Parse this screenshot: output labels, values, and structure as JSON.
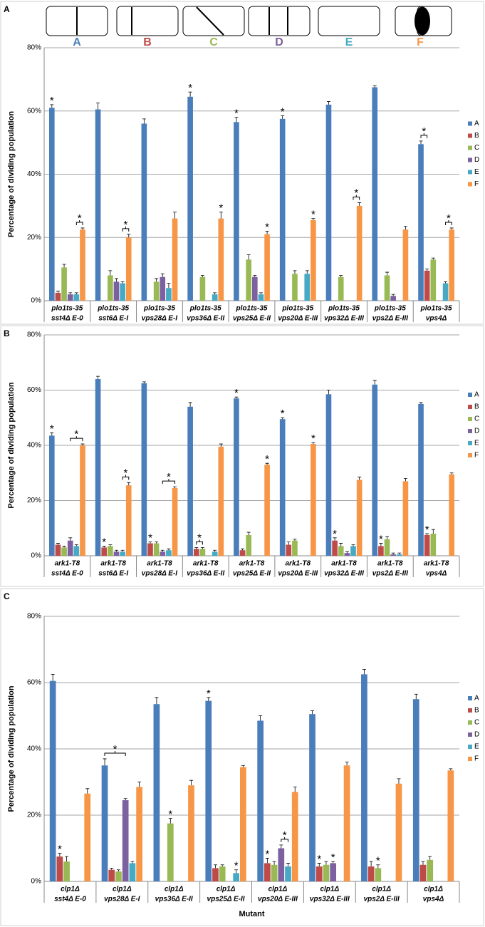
{
  "chart_data": [
    {
      "type": "bar",
      "panel": "A",
      "ylabel": "Percentage of dividing population",
      "categories": [
        [
          "plo1ts-35",
          "sst4Δ E-0"
        ],
        [
          "plo1ts-35",
          "sst6Δ E-I"
        ],
        [
          "plo1ts-35",
          "vps28Δ E-I"
        ],
        [
          "plo1ts-35",
          "vps36Δ E-II"
        ],
        [
          "plo1ts-35",
          "vps25Δ E-II"
        ],
        [
          "plo1ts-35",
          "vps20Δ E-III"
        ],
        [
          "plo1ts-35",
          "vps32Δ E-III"
        ],
        [
          "plo1ts-35",
          "vps2Δ E-III"
        ],
        [
          "plo1ts-35",
          "vps4Δ"
        ]
      ],
      "series": [
        {
          "name": "A",
          "color": "#4a7ebb",
          "values": [
            61,
            60.5,
            56,
            64.5,
            56.5,
            57.5,
            62,
            67.5,
            49.5
          ],
          "errors": [
            1,
            2,
            1.5,
            1.5,
            1.5,
            1,
            1,
            0.5,
            1
          ]
        },
        {
          "name": "B",
          "color": "#be4b48",
          "values": [
            2.5,
            0,
            0,
            0,
            0,
            0,
            0,
            0,
            9.5
          ],
          "errors": [
            0.5,
            0,
            0,
            0,
            0,
            0,
            0,
            0,
            0.5
          ]
        },
        {
          "name": "C",
          "color": "#98b954",
          "values": [
            10.5,
            8,
            6,
            7.5,
            13,
            8.5,
            7.5,
            8,
            13
          ],
          "errors": [
            1,
            1.5,
            1,
            0.5,
            1.5,
            1,
            0.5,
            1,
            0.5
          ]
        },
        {
          "name": "D",
          "color": "#7d60a0",
          "values": [
            2,
            6,
            7.5,
            0,
            7.5,
            0,
            0,
            1.5,
            0
          ],
          "errors": [
            0.5,
            1,
            1,
            0,
            0.5,
            0,
            0,
            0.5,
            0
          ]
        },
        {
          "name": "E",
          "color": "#46aac5",
          "values": [
            2,
            5.5,
            4,
            2,
            2,
            8.5,
            0,
            0,
            5.5
          ],
          "errors": [
            0.5,
            0.5,
            1.5,
            0.5,
            0.5,
            1,
            0,
            0,
            0.5
          ]
        },
        {
          "name": "F",
          "color": "#f79646",
          "values": [
            22.5,
            20,
            26,
            26,
            21,
            25.5,
            30,
            22.5,
            22.5
          ],
          "errors": [
            0.5,
            1,
            2,
            2,
            1,
            0.5,
            1,
            1,
            0.5
          ]
        }
      ],
      "ylim": [
        0,
        80
      ],
      "yticks": [
        {
          "value": 0,
          "label": "0%"
        },
        {
          "value": 20,
          "label": "20%"
        },
        {
          "value": 40,
          "label": "40%"
        },
        {
          "value": 60,
          "label": "60%"
        },
        {
          "value": 80,
          "label": "80%"
        }
      ],
      "grid": true,
      "legend": "right",
      "annotations": [
        {
          "text": "*",
          "category": 0,
          "series": [
            0
          ]
        },
        {
          "text": "*",
          "category": 0,
          "series": [
            4,
            5
          ]
        },
        {
          "text": "*",
          "category": 1,
          "series": [
            4,
            5
          ]
        },
        {
          "text": "*",
          "category": 3,
          "series": [
            0
          ]
        },
        {
          "text": "*",
          "category": 3,
          "series": [
            5
          ]
        },
        {
          "text": "*",
          "category": 4,
          "series": [
            0
          ]
        },
        {
          "text": "*",
          "category": 4,
          "series": [
            5
          ]
        },
        {
          "text": "*",
          "category": 5,
          "series": [
            0
          ]
        },
        {
          "text": "*",
          "category": 5,
          "series": [
            5
          ]
        },
        {
          "text": "*",
          "category": 6,
          "series": [
            4,
            5
          ]
        },
        {
          "text": "*",
          "category": 8,
          "series": [
            0,
            1
          ]
        },
        {
          "text": "*",
          "category": 8,
          "series": [
            4,
            5
          ]
        }
      ]
    },
    {
      "type": "bar",
      "panel": "B",
      "ylabel": "Percentage of dividing population",
      "categories": [
        [
          "ark1-T8",
          "sst4Δ E-0"
        ],
        [
          "ark1-T8",
          "sst6Δ E-I"
        ],
        [
          "ark1-T8",
          "vps28Δ E-I"
        ],
        [
          "ark1-T8",
          "vps36Δ E-II"
        ],
        [
          "ark1-T8",
          "vps25Δ E-II"
        ],
        [
          "ark1-T8",
          "vps20Δ E-III"
        ],
        [
          "ark1-T8",
          "vps32Δ E-III"
        ],
        [
          "ark1-T8",
          "vps2Δ E-III"
        ],
        [
          "ark1-T8",
          "vps4Δ"
        ]
      ],
      "series": [
        {
          "name": "A",
          "color": "#4a7ebb",
          "values": [
            43.5,
            64,
            62.5,
            54,
            57,
            49.5,
            58.5,
            62,
            55
          ],
          "errors": [
            1,
            1,
            0.5,
            1.5,
            0.5,
            0.5,
            1.5,
            1.5,
            0.5
          ]
        },
        {
          "name": "B",
          "color": "#be4b48",
          "values": [
            4,
            3,
            4.5,
            2.5,
            2,
            4,
            5.5,
            3.5,
            7.5
          ],
          "errors": [
            0.5,
            0.5,
            0.5,
            0.5,
            0.5,
            1,
            1,
            1,
            0.5
          ]
        },
        {
          "name": "C",
          "color": "#98b954",
          "values": [
            3,
            3.5,
            4.5,
            2.5,
            7.5,
            5.5,
            3.5,
            6,
            8
          ],
          "errors": [
            0.5,
            0.5,
            0.5,
            0.5,
            1,
            0.5,
            1,
            1,
            1.5
          ]
        },
        {
          "name": "D",
          "color": "#7d60a0",
          "values": [
            5.5,
            1.5,
            1.5,
            0,
            0,
            0,
            1,
            0.5,
            0
          ],
          "errors": [
            1,
            0.5,
            0.5,
            0,
            0,
            0,
            0.5,
            0.5,
            0
          ]
        },
        {
          "name": "E",
          "color": "#46aac5",
          "values": [
            3.5,
            1.5,
            2,
            1.5,
            0,
            0,
            3.5,
            0.5,
            0
          ],
          "errors": [
            0.5,
            0.5,
            0.5,
            0.5,
            0,
            0,
            0.5,
            0.5,
            0
          ]
        },
        {
          "name": "F",
          "color": "#f79646",
          "values": [
            40,
            25.5,
            24.5,
            39.5,
            33,
            40.5,
            27.5,
            27,
            29.5
          ],
          "errors": [
            0.5,
            1,
            0.5,
            1,
            0.5,
            0.5,
            1,
            1,
            0.5
          ]
        }
      ],
      "ylim": [
        0,
        80
      ],
      "yticks": [
        {
          "value": 0,
          "label": "0%"
        },
        {
          "value": 20,
          "label": "20%"
        },
        {
          "value": 40,
          "label": "40%"
        },
        {
          "value": 60,
          "label": "60%"
        },
        {
          "value": 80,
          "label": "80%"
        }
      ],
      "grid": true,
      "legend": "right",
      "annotations": [
        {
          "text": "*",
          "category": 0,
          "series": [
            0
          ]
        },
        {
          "text": "*",
          "category": 0,
          "series": [
            3,
            5
          ]
        },
        {
          "text": "*",
          "category": 1,
          "series": [
            1
          ]
        },
        {
          "text": "*",
          "category": 1,
          "series": [
            4,
            5
          ]
        },
        {
          "text": "*",
          "category": 2,
          "series": [
            1
          ]
        },
        {
          "text": "*",
          "category": 2,
          "series": [
            3,
            5
          ]
        },
        {
          "text": "*",
          "category": 3,
          "series": [
            1,
            2
          ]
        },
        {
          "text": "*",
          "category": 4,
          "series": [
            0
          ]
        },
        {
          "text": "*",
          "category": 4,
          "series": [
            5
          ]
        },
        {
          "text": "*",
          "category": 5,
          "series": [
            0
          ]
        },
        {
          "text": "*",
          "category": 5,
          "series": [
            5
          ]
        },
        {
          "text": "*",
          "category": 6,
          "series": [
            1
          ]
        },
        {
          "text": "*",
          "category": 7,
          "series": [
            1
          ]
        },
        {
          "text": "*",
          "category": 8,
          "series": [
            1
          ]
        }
      ]
    },
    {
      "type": "bar",
      "panel": "C",
      "ylabel": "Percentage of dividing population",
      "xlabel": "Mutant",
      "categories": [
        [
          "clp1Δ",
          "sst4Δ E-0"
        ],
        [
          "clp1Δ",
          "vps28Δ E-I"
        ],
        [
          "clp1Δ",
          "vps36Δ E-II"
        ],
        [
          "clp1Δ",
          "vps25Δ E-II"
        ],
        [
          "clp1Δ",
          "vps20Δ E-III"
        ],
        [
          "clp1Δ",
          "vps32Δ E-III"
        ],
        [
          "clp1Δ",
          "vps2Δ E-III"
        ],
        [
          "clp1Δ",
          "vps4Δ"
        ]
      ],
      "series": [
        {
          "name": "A",
          "color": "#4a7ebb",
          "values": [
            60.5,
            35,
            53.5,
            54.5,
            48.5,
            50.5,
            62.5,
            55
          ],
          "errors": [
            2,
            2,
            2,
            1,
            1.5,
            1,
            1.5,
            1.5
          ]
        },
        {
          "name": "B",
          "color": "#be4b48",
          "values": [
            7.5,
            3.5,
            0,
            4,
            5.5,
            4.5,
            4.5,
            5
          ],
          "errors": [
            1,
            0.5,
            0,
            1,
            1.5,
            1,
            1.5,
            1
          ]
        },
        {
          "name": "C",
          "color": "#98b954",
          "values": [
            6,
            3,
            17.5,
            4.5,
            5,
            5,
            4,
            6.5
          ],
          "errors": [
            1.5,
            0.5,
            1.5,
            0.5,
            1,
            1,
            1,
            1
          ]
        },
        {
          "name": "D",
          "color": "#7d60a0",
          "values": [
            0,
            24.5,
            0,
            0,
            10,
            5.5,
            0,
            0
          ],
          "errors": [
            0,
            0.5,
            0,
            0,
            1,
            0.5,
            0,
            0
          ]
        },
        {
          "name": "E",
          "color": "#46aac5",
          "values": [
            0,
            5.5,
            0,
            2.5,
            4.5,
            0,
            0,
            0
          ],
          "errors": [
            0,
            0.5,
            0,
            1,
            1,
            0,
            0,
            0
          ]
        },
        {
          "name": "F",
          "color": "#f79646",
          "values": [
            26.5,
            28.5,
            29,
            34.5,
            27,
            35,
            29.5,
            33.5
          ],
          "errors": [
            1.5,
            1.5,
            1.5,
            0.5,
            1.5,
            1,
            1.5,
            0.5
          ]
        }
      ],
      "ylim": [
        0,
        80
      ],
      "yticks": [
        {
          "value": 0,
          "label": "0%"
        },
        {
          "value": 20,
          "label": "20%"
        },
        {
          "value": 40,
          "label": "40%"
        },
        {
          "value": 60,
          "label": "60%"
        },
        {
          "value": 80,
          "label": "80%"
        }
      ],
      "grid": true,
      "legend": "right",
      "annotations": [
        {
          "text": "*",
          "category": 0,
          "series": [
            1
          ]
        },
        {
          "text": "*",
          "category": 1,
          "series": [
            0,
            3
          ]
        },
        {
          "text": "*",
          "category": 2,
          "series": [
            2
          ]
        },
        {
          "text": "*",
          "category": 3,
          "series": [
            0
          ]
        },
        {
          "text": "*",
          "category": 3,
          "series": [
            4
          ]
        },
        {
          "text": "*",
          "category": 4,
          "series": [
            1
          ]
        },
        {
          "text": "*",
          "category": 4,
          "series": [
            3,
            4
          ]
        },
        {
          "text": "*",
          "category": 5,
          "series": [
            1
          ]
        },
        {
          "text": "*",
          "category": 5,
          "series": [
            3
          ]
        },
        {
          "text": "*",
          "category": 6,
          "series": [
            2
          ]
        }
      ]
    }
  ]
}
